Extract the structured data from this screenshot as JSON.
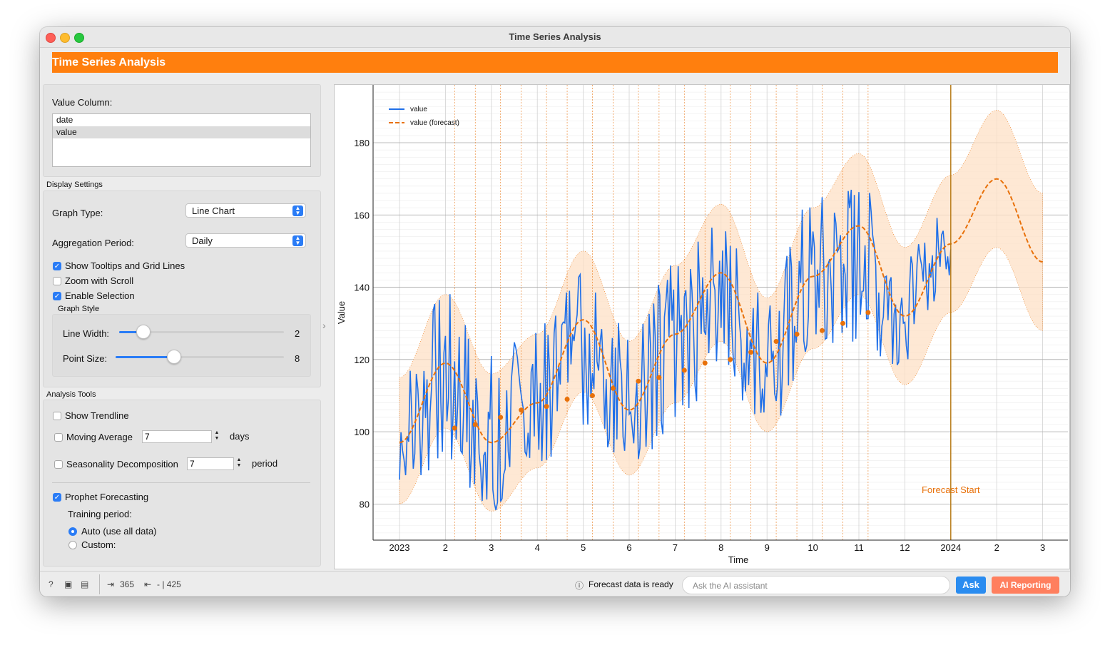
{
  "window": {
    "title": "Time Series Analysis"
  },
  "banner": {
    "title": "Time Series Analysis"
  },
  "value_column": {
    "label": "Value Column:",
    "items": [
      "date",
      "value"
    ],
    "selected": "value"
  },
  "display_settings": {
    "title": "Display Settings",
    "graph_type_label": "Graph Type:",
    "graph_type_value": "Line Chart",
    "aggregation_label": "Aggregation Period:",
    "aggregation_value": "Daily",
    "show_tooltips_label": "Show Tooltips and Grid Lines",
    "show_tooltips_checked": true,
    "zoom_label": "Zoom with Scroll",
    "zoom_checked": false,
    "selection_label": "Enable Selection",
    "selection_checked": true,
    "graph_style_title": "Graph Style",
    "line_width_label": "Line Width:",
    "line_width_value": "2",
    "point_size_label": "Point Size:",
    "point_size_value": "8"
  },
  "analysis_tools": {
    "title": "Analysis Tools",
    "trendline_label": "Show Trendline",
    "moving_average_label": "Moving Average",
    "moving_average_value": "7",
    "moving_average_unit": "days",
    "seasonality_label": "Seasonality Decomposition",
    "seasonality_value": "7",
    "seasonality_unit": "period",
    "prophet_label": "Prophet Forecasting",
    "prophet_checked": true,
    "training_period_label": "Training period:",
    "auto_label": "Auto (use all data)",
    "custom_label": "Custom:"
  },
  "statusbar": {
    "input_count": "365",
    "output_count": "- | 425",
    "message": "Forecast data is ready",
    "ask_placeholder": "Ask the AI assistant",
    "ask_button": "Ask",
    "ai_reporting_button": "AI Reporting"
  },
  "colors": {
    "accent": "#ff7f0e",
    "series": "#1f6fe8",
    "forecast": "#e8710a",
    "band": "#fde0c6"
  },
  "chart_data": {
    "type": "line",
    "xlabel": "Time",
    "ylabel": "Value",
    "ylim": [
      70,
      196
    ],
    "y_ticks": [
      80,
      100,
      120,
      140,
      160,
      180
    ],
    "x_tick_labels": [
      "2023",
      "2",
      "3",
      "4",
      "5",
      "6",
      "7",
      "8",
      "9",
      "10",
      "11",
      "12",
      "2024",
      "2",
      "3"
    ],
    "legend": [
      "value",
      "value (forecast)"
    ],
    "legend_position": "top-left",
    "annotation": "Forecast Start",
    "grid": true,
    "series": [
      {
        "name": "value",
        "x": [
          "2023-01",
          "2023-02",
          "2023-03",
          "2023-04",
          "2023-05",
          "2023-06",
          "2023-07",
          "2023-08",
          "2023-09",
          "2023-10",
          "2023-11",
          "2023-12",
          "2024-01"
        ],
        "values": [
          97,
          120,
          95,
          110,
          132,
          108,
          125,
          142,
          120,
          140,
          156,
          133,
          152
        ],
        "daily_min": [
          86,
          88,
          77,
          88,
          100,
          88,
          100,
          112,
          100,
          115,
          120,
          117,
          138
        ],
        "daily_max": [
          121,
          140,
          125,
          130,
          150,
          132,
          148,
          160,
          142,
          168,
          170,
          150,
          164
        ]
      },
      {
        "name": "value (forecast)",
        "x": [
          "2023-01",
          "2023-02",
          "2023-03",
          "2023-04",
          "2023-05",
          "2023-06",
          "2023-07",
          "2023-08",
          "2023-09",
          "2023-10",
          "2023-11",
          "2023-12",
          "2024-01",
          "2024-02",
          "2024-03"
        ],
        "values": [
          97,
          119,
          97,
          108,
          131,
          106,
          127,
          144,
          119,
          143,
          157,
          132,
          152,
          170,
          147
        ],
        "lower": [
          80,
          101,
          78,
          90,
          111,
          88,
          108,
          125,
          100,
          123,
          138,
          113,
          133,
          151,
          128
        ],
        "upper": [
          115,
          138,
          116,
          127,
          150,
          125,
          146,
          163,
          137,
          162,
          177,
          151,
          171,
          189,
          166
        ]
      },
      {
        "name": "changepoints",
        "x": [
          "2023-02",
          "2023-02",
          "2023-03",
          "2023-03",
          "2023-04",
          "2023-04",
          "2023-05",
          "2023-05",
          "2023-06",
          "2023-06",
          "2023-07",
          "2023-07",
          "2023-08",
          "2023-08",
          "2023-09",
          "2023-09",
          "2023-10",
          "2023-10",
          "2023-11"
        ],
        "values": [
          101,
          102,
          104,
          106,
          107,
          109,
          110,
          112,
          114,
          115,
          117,
          119,
          120,
          122,
          125,
          127,
          128,
          130,
          133
        ]
      }
    ]
  }
}
